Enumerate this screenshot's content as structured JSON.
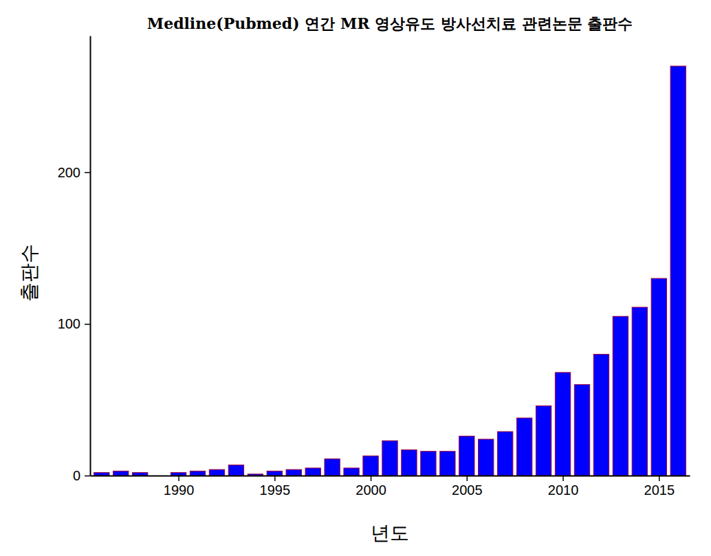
{
  "chart_data": {
    "type": "bar",
    "title": "Medline(Pubmed) 연간 MR 영상유도 방사선치료 관련논문 출판수",
    "x_label": "년도",
    "y_label": "출판수",
    "x": [
      1986,
      1987,
      1988,
      1989,
      1990,
      1991,
      1992,
      1993,
      1994,
      1995,
      1996,
      1997,
      1998,
      1999,
      2000,
      2001,
      2002,
      2003,
      2004,
      2005,
      2006,
      2007,
      2008,
      2009,
      2010,
      2011,
      2012,
      2013,
      2014,
      2015,
      2016
    ],
    "values": [
      2,
      3,
      2,
      0,
      2,
      3,
      4,
      7,
      1,
      3,
      4,
      5,
      11,
      5,
      13,
      23,
      17,
      16,
      16,
      26,
      24,
      29,
      38,
      46,
      68,
      60,
      80,
      105,
      111,
      130,
      270
    ],
    "color": "#0000ff",
    "xlim": [
      1985.4,
      2016.6
    ],
    "xticks": [
      1990,
      1995,
      2000,
      2005,
      2010,
      2015
    ],
    "ylim": [
      0,
      290
    ],
    "yticks": [
      0,
      100,
      200
    ],
    "grid": false
  }
}
